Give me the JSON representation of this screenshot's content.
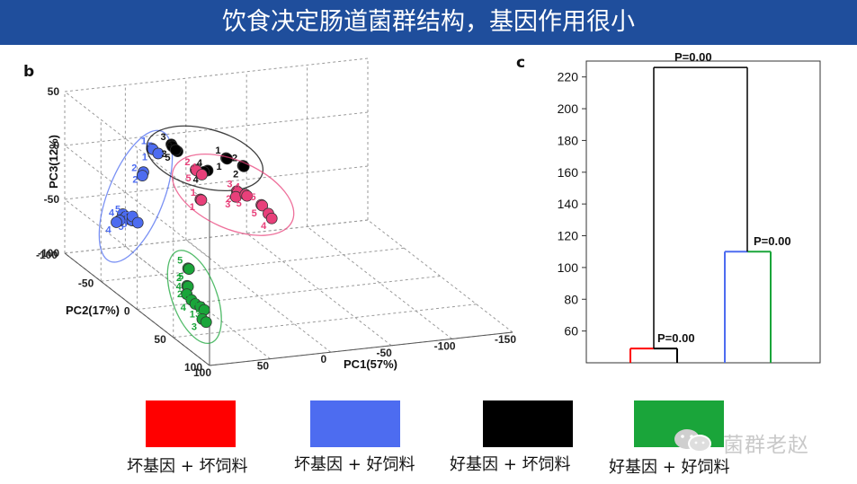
{
  "title": "饮食决定肠道菌群结构，基因作用很小",
  "panel_b": "b",
  "panel_c": "c",
  "legend": [
    {
      "label": "坏基因 + 坏饲料",
      "color": "#ff0000"
    },
    {
      "label": "坏基因 + 好饲料",
      "color": "#4d6cf0"
    },
    {
      "label": "好基因 + 坏饲料",
      "color": "#000000"
    },
    {
      "label": "好基因 + 好饲料",
      "color": "#1aa53a"
    }
  ],
  "watermark": "菌群老赵",
  "chart_data": [
    {
      "type": "scatter",
      "xlabel": "PC1(57%)",
      "ylabel": "PC2(17%)",
      "zlabel": "PC3(12%)",
      "x_ticks": [
        "100",
        "50",
        "0",
        "-50",
        "-100",
        "-150"
      ],
      "y_ticks": [
        "-100",
        "-50",
        "0",
        "50",
        "100"
      ],
      "z_ticks": [
        "50",
        "0",
        "-50",
        "-100"
      ],
      "grid": true,
      "series": [
        {
          "color": "#4d6cf0",
          "points": [
            {
              "x": 52,
              "y": -60,
              "z": 12,
              "label": "1"
            },
            {
              "x": 50,
              "y": -62,
              "z": 10,
              "label": "1"
            },
            {
              "x": 48,
              "y": -58,
              "z": 8,
              "label": "5"
            },
            {
              "x": 62,
              "y": -55,
              "z": -6,
              "label": "2"
            },
            {
              "x": 64,
              "y": -53,
              "z": -8,
              "label": "2"
            },
            {
              "x": 82,
              "y": -50,
              "z": -40,
              "label": "3"
            },
            {
              "x": 80,
              "y": -49,
              "z": -42,
              "label": "5"
            },
            {
              "x": 78,
              "y": -48,
              "z": -44,
              "label": "5"
            },
            {
              "x": 84,
              "y": -51,
              "z": -46,
              "label": "4"
            },
            {
              "x": 86,
              "y": -52,
              "z": -48,
              "label": "4"
            },
            {
              "x": 76,
              "y": -47,
              "z": -45,
              "label": "3"
            },
            {
              "x": 74,
              "y": -50,
              "z": -43,
              "label": "5"
            },
            {
              "x": 72,
              "y": -46,
              "z": -47,
              "label": "3"
            }
          ]
        },
        {
          "color": "#000000",
          "points": [
            {
              "x": 30,
              "y": -70,
              "z": 8,
              "label": "3"
            },
            {
              "x": 28,
              "y": -72,
              "z": 5,
              "label": "3"
            },
            {
              "x": 26,
              "y": -68,
              "z": 2,
              "label": "5"
            },
            {
              "x": 24,
              "y": -74,
              "z": 0,
              "label": "5"
            },
            {
              "x": 0,
              "y": -70,
              "z": -20,
              "label": "4"
            },
            {
              "x": 2,
              "y": -72,
              "z": -22,
              "label": "4"
            },
            {
              "x": -20,
              "y": -78,
              "z": -15,
              "label": "1"
            },
            {
              "x": -22,
              "y": -80,
              "z": -17,
              "label": "1"
            },
            {
              "x": -35,
              "y": -80,
              "z": -25,
              "label": "2"
            },
            {
              "x": -37,
              "y": -82,
              "z": -27,
              "label": "2"
            }
          ]
        },
        {
          "color": "#e8407a",
          "points": [
            {
              "x": 10,
              "y": -70,
              "z": -18,
              "label": "2"
            },
            {
              "x": 8,
              "y": -72,
              "z": -20,
              "label": "5"
            },
            {
              "x": 6,
              "y": -68,
              "z": -22,
              "label": "4"
            },
            {
              "x": 12,
              "y": -60,
              "z": -40,
              "label": "1"
            },
            {
              "x": 10,
              "y": -62,
              "z": -42,
              "label": "1"
            },
            {
              "x": -30,
              "y": -80,
              "z": -48,
              "label": "2"
            },
            {
              "x": -32,
              "y": -82,
              "z": -50,
              "label": "3"
            },
            {
              "x": -28,
              "y": -78,
              "z": -52,
              "label": "3"
            },
            {
              "x": -40,
              "y": -85,
              "z": -55,
              "label": "4"
            },
            {
              "x": -42,
              "y": -86,
              "z": -57,
              "label": "5"
            },
            {
              "x": -55,
              "y": -88,
              "z": -68,
              "label": "5"
            },
            {
              "x": -57,
              "y": -90,
              "z": -70,
              "label": "5"
            },
            {
              "x": -62,
              "y": -90,
              "z": -78,
              "label": "4"
            },
            {
              "x": -66,
              "y": -92,
              "z": -84,
              "label": "4"
            }
          ]
        },
        {
          "color": "#1aa53a",
          "points": [
            {
              "x": 55,
              "y": -5,
              "z": -70,
              "label": "5"
            },
            {
              "x": 53,
              "y": -7,
              "z": -72,
              "label": "5"
            },
            {
              "x": 60,
              "y": 2,
              "z": -82,
              "label": "2"
            },
            {
              "x": 58,
              "y": 0,
              "z": -84,
              "label": "2"
            },
            {
              "x": 62,
              "y": 5,
              "z": -88,
              "label": "4"
            },
            {
              "x": 60,
              "y": 8,
              "z": -92,
              "label": "4"
            },
            {
              "x": 58,
              "y": 10,
              "z": -95,
              "label": "3"
            },
            {
              "x": 55,
              "y": 12,
              "z": -97,
              "label": "1"
            },
            {
              "x": 53,
              "y": 14,
              "z": -99,
              "label": "1"
            },
            {
              "x": 57,
              "y": 18,
              "z": -105,
              "label": "3"
            },
            {
              "x": 55,
              "y": 20,
              "z": -107,
              "label": "3"
            }
          ]
        }
      ]
    },
    {
      "type": "dendrogram",
      "y_ticks": [
        "220",
        "200",
        "180",
        "160",
        "140",
        "120",
        "100",
        "80",
        "60"
      ],
      "ylim": [
        40,
        230
      ],
      "leaves": [
        {
          "color": "#ff0000"
        },
        {
          "color": "#000000"
        },
        {
          "color": "#4d6cf0"
        },
        {
          "color": "#1aa53a"
        }
      ],
      "merges": [
        {
          "height": 49,
          "label": "P=0.00",
          "children": [
            0,
            1
          ]
        },
        {
          "height": 110,
          "label": "P=0.00",
          "children": [
            2,
            3
          ]
        },
        {
          "height": 226,
          "label": "P=0.00",
          "children": [
            "m0",
            "m1"
          ]
        }
      ]
    }
  ]
}
